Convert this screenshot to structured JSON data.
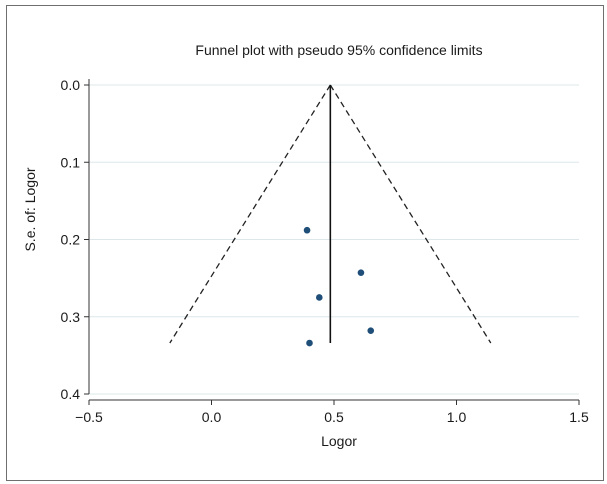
{
  "chart_data": {
    "type": "scatter",
    "title": "Funnel plot with pseudo 95% confidence limits",
    "xlabel": "Logor",
    "ylabel": "S.e. of: Logor",
    "xlim": [
      -0.5,
      1.5
    ],
    "ylim": [
      0.0,
      0.4
    ],
    "y_inverted": true,
    "x_ticks": [
      "−0.5",
      "0.0",
      "0.5",
      "1.0",
      "1.5"
    ],
    "x_tick_values": [
      -0.5,
      0.0,
      0.5,
      1.0,
      1.5
    ],
    "y_ticks": [
      "0.0",
      "0.1",
      "0.2",
      "0.3",
      "0.4"
    ],
    "y_tick_values": [
      0.0,
      0.1,
      0.2,
      0.3,
      0.4
    ],
    "grid": true,
    "series": [
      {
        "points": [
          {
            "x": 0.39,
            "y": 0.188
          },
          {
            "x": 0.61,
            "y": 0.243
          },
          {
            "x": 0.44,
            "y": 0.275
          },
          {
            "x": 0.65,
            "y": 0.318
          },
          {
            "x": 0.4,
            "y": 0.334
          }
        ],
        "color": "#1f4e79"
      }
    ],
    "pooled_estimate": 0.485,
    "ci_lines": {
      "apex": {
        "x": 0.485,
        "y": 0.0
      },
      "left_end": {
        "x": -0.17,
        "y": 0.334
      },
      "right_end": {
        "x": 1.14,
        "y": 0.334
      },
      "style": "dashed"
    },
    "vertical_line_end_y": 0.334
  }
}
